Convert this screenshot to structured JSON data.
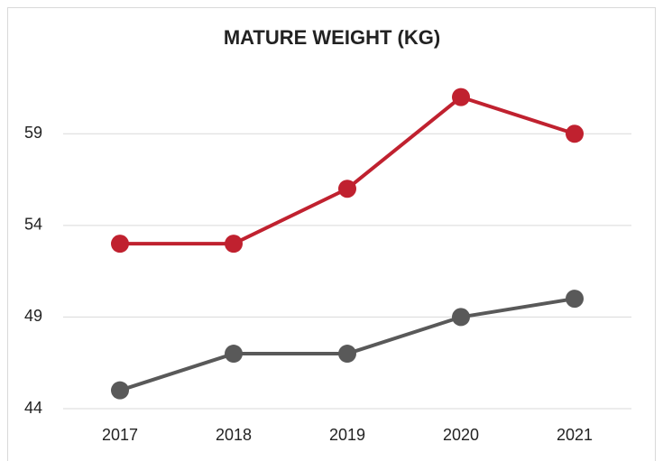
{
  "chart_data": {
    "type": "line",
    "title": "MATURE WEIGHT (KG)",
    "categories": [
      "2017",
      "2018",
      "2019",
      "2020",
      "2021"
    ],
    "series": [
      {
        "color": "#c0212f",
        "values": [
          53,
          53,
          56,
          61,
          59
        ]
      },
      {
        "color": "#595959",
        "values": [
          45,
          47,
          47,
          49,
          50
        ]
      }
    ],
    "ylim": [
      44,
      63
    ],
    "yticks": [
      44,
      49,
      54,
      59
    ],
    "grid": true
  }
}
